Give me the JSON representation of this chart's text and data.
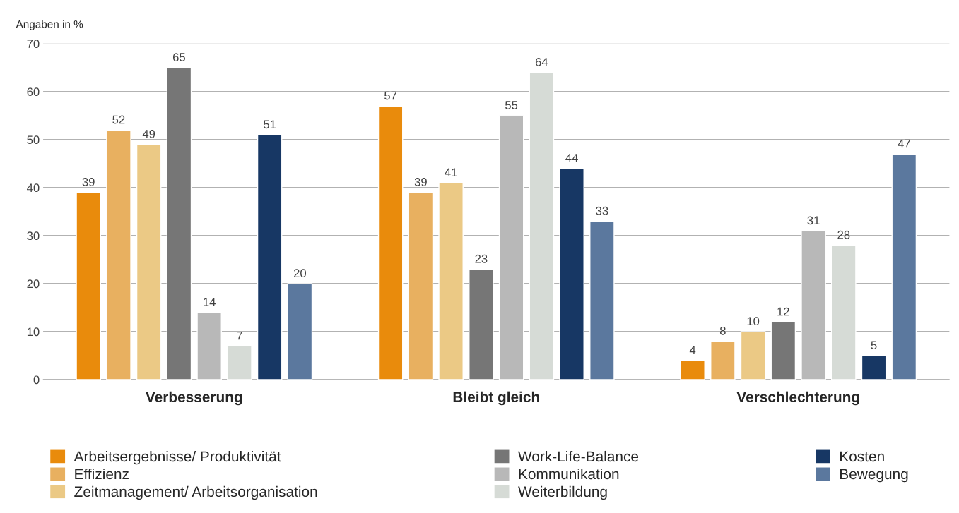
{
  "chart_data": {
    "type": "bar",
    "ylabel": "Angaben in %",
    "categories": [
      "Verbesserung",
      "Bleibt gleich",
      "Verschlechterung"
    ],
    "series": [
      {
        "name": "Arbeitsergebnisse/ Produktivität",
        "color": "#e98b0c",
        "values": [
          39,
          57,
          4
        ]
      },
      {
        "name": "Effizienz",
        "color": "#e8b060",
        "values": [
          52,
          39,
          8
        ]
      },
      {
        "name": "Zeitmanagement/ Arbeitsorganisation",
        "color": "#ebc985",
        "values": [
          49,
          41,
          10
        ]
      },
      {
        "name": "Work-Life-Balance",
        "color": "#767676",
        "values": [
          65,
          23,
          12
        ]
      },
      {
        "name": "Kommunikation",
        "color": "#b8b8b8",
        "values": [
          14,
          55,
          31
        ]
      },
      {
        "name": "Weiterbildung",
        "color": "#d6dbd6",
        "values": [
          7,
          64,
          28
        ]
      },
      {
        "name": "Kosten",
        "color": "#173764",
        "values": [
          51,
          44,
          5
        ]
      },
      {
        "name": "Bewegung",
        "color": "#5b789e",
        "values": [
          20,
          33,
          47
        ]
      }
    ],
    "ylim": [
      0,
      70
    ],
    "yticks": [
      0,
      10,
      20,
      30,
      40,
      50,
      60,
      70
    ],
    "grid": "y",
    "legend": "bottom",
    "data_labels": true
  }
}
